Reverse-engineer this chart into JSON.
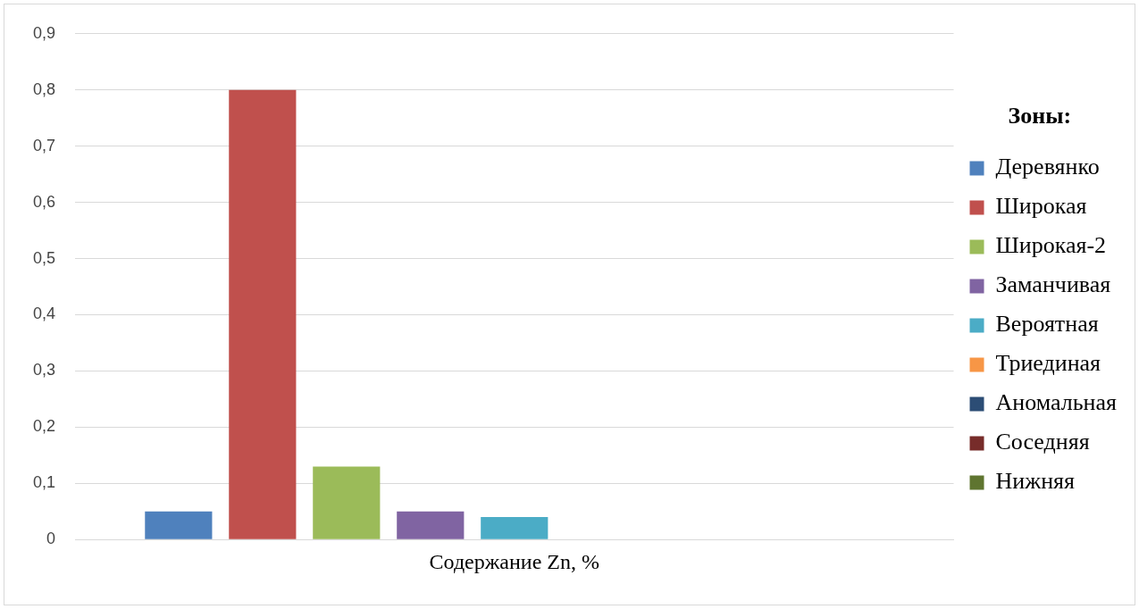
{
  "chart_data": {
    "type": "bar",
    "categories": [
      "Содержание Zn, %"
    ],
    "legend_title": "Зоны:",
    "legend": "right",
    "grid": "y",
    "ylim": [
      0,
      0.9
    ],
    "yticks": [
      {
        "value": 0,
        "label": "0"
      },
      {
        "value": 0.1,
        "label": "0,1"
      },
      {
        "value": 0.2,
        "label": "0,2"
      },
      {
        "value": 0.3,
        "label": "0,3"
      },
      {
        "value": 0.4,
        "label": "0,4"
      },
      {
        "value": 0.5,
        "label": "0,5"
      },
      {
        "value": 0.6,
        "label": "0,6"
      },
      {
        "value": 0.7,
        "label": "0,7"
      },
      {
        "value": 0.8,
        "label": "0,8"
      },
      {
        "value": 0.9,
        "label": "0,9"
      }
    ],
    "series": [
      {
        "name": "Деревянко",
        "color": "#4f81bd",
        "values": [
          0.05
        ]
      },
      {
        "name": "Широкая",
        "color": "#c0504d",
        "values": [
          0.8
        ]
      },
      {
        "name": "Широкая-2",
        "color": "#9bbb59",
        "values": [
          0.13
        ]
      },
      {
        "name": "Заманчивая",
        "color": "#8064a2",
        "values": [
          0.05
        ]
      },
      {
        "name": "Вероятная",
        "color": "#4bacc6",
        "values": [
          0.04
        ]
      },
      {
        "name": "Триединая",
        "color": "#f79646",
        "values": [
          0
        ]
      },
      {
        "name": "Аномальная",
        "color": "#2c4d75",
        "values": [
          0
        ]
      },
      {
        "name": "Соседняя",
        "color": "#772c2a",
        "values": [
          0
        ]
      },
      {
        "name": "Нижняя",
        "color": "#5f7530",
        "values": [
          0
        ]
      }
    ]
  }
}
